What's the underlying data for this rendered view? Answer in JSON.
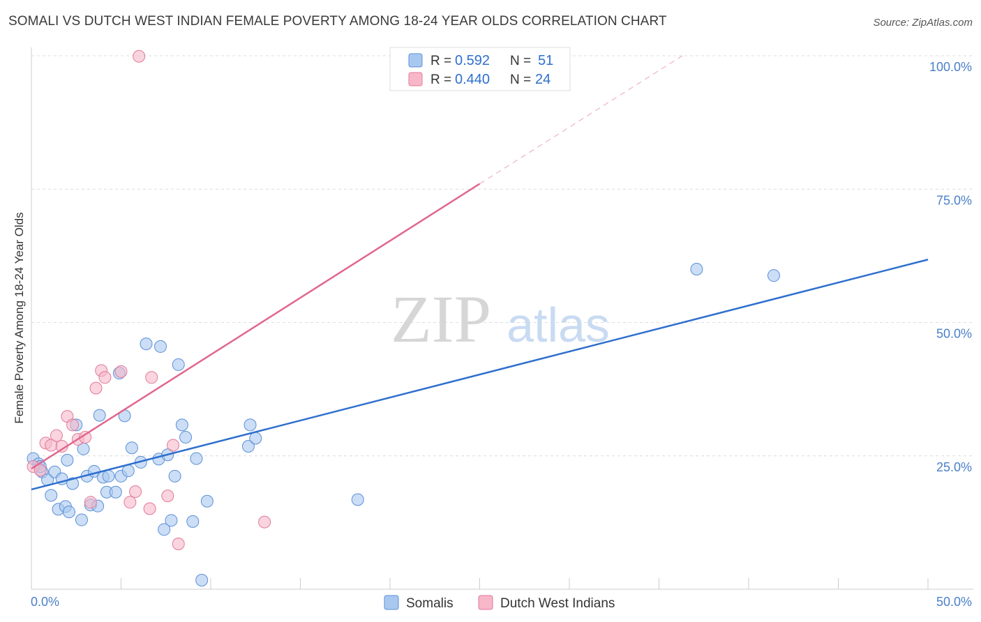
{
  "chart_data": {
    "type": "scatter",
    "title": "SOMALI VS DUTCH WEST INDIAN FEMALE POVERTY AMONG 18-24 YEAR OLDS CORRELATION CHART",
    "source": "Source: ZipAtlas.com",
    "ylabel": "Female Poverty Among 18-24 Year Olds",
    "xlabel": "",
    "xlim": [
      0,
      50
    ],
    "ylim": [
      0,
      100
    ],
    "x_tick_labels": [
      "0.0%",
      "50.0%"
    ],
    "y_tick_labels": [
      "25.0%",
      "50.0%",
      "75.0%",
      "100.0%"
    ],
    "y_ticks": [
      25,
      50,
      75,
      100
    ],
    "watermark": {
      "part1": "ZIP",
      "part2": "atlas"
    },
    "colors": {
      "somali_fill": "#a9c8f0",
      "somali_stroke": "#5b8fd6",
      "somali_line": "#2e6fce",
      "dwi_fill": "#f7b7c9",
      "dwi_stroke": "#e07a9a",
      "dwi_line": "#e0678e",
      "grid": "#dcdcdc",
      "tick": "#4a7fc8"
    },
    "legend": {
      "items": [
        {
          "r_label": "R =",
          "r_value": "0.592",
          "n_label": "N =",
          "n_value": "51"
        },
        {
          "r_label": "R =",
          "r_value": "0.440",
          "n_label": "N =",
          "n_value": "24"
        }
      ]
    },
    "series": [
      {
        "name": "Somalis",
        "r": 0.592,
        "n": 51,
        "trend": {
          "x1": 0,
          "y1": 18.7,
          "x2": 50,
          "y2": 61.8
        },
        "points": [
          [
            0.1,
            24.5
          ],
          [
            0.4,
            23.5
          ],
          [
            0.6,
            22.0
          ],
          [
            0.9,
            20.5
          ],
          [
            1.1,
            17.6
          ],
          [
            1.3,
            22.0
          ],
          [
            1.5,
            15.0
          ],
          [
            1.7,
            20.7
          ],
          [
            1.9,
            15.5
          ],
          [
            2.0,
            24.2
          ],
          [
            2.1,
            14.5
          ],
          [
            2.3,
            19.8
          ],
          [
            2.5,
            30.8
          ],
          [
            2.8,
            13.0
          ],
          [
            2.9,
            26.3
          ],
          [
            3.1,
            21.2
          ],
          [
            3.3,
            15.8
          ],
          [
            3.5,
            22.1
          ],
          [
            3.7,
            15.6
          ],
          [
            3.8,
            32.6
          ],
          [
            4.0,
            21.0
          ],
          [
            4.2,
            18.2
          ],
          [
            4.3,
            21.2
          ],
          [
            4.7,
            18.2
          ],
          [
            4.9,
            40.5
          ],
          [
            5.0,
            21.2
          ],
          [
            5.2,
            32.5
          ],
          [
            5.4,
            22.2
          ],
          [
            5.6,
            26.5
          ],
          [
            6.1,
            23.8
          ],
          [
            6.4,
            46.0
          ],
          [
            7.1,
            24.4
          ],
          [
            7.2,
            45.5
          ],
          [
            7.4,
            11.2
          ],
          [
            7.6,
            25.2
          ],
          [
            7.8,
            12.9
          ],
          [
            8.0,
            21.2
          ],
          [
            8.2,
            42.1
          ],
          [
            8.4,
            30.8
          ],
          [
            8.6,
            28.5
          ],
          [
            9.0,
            12.7
          ],
          [
            9.2,
            24.5
          ],
          [
            9.5,
            1.7
          ],
          [
            9.8,
            16.5
          ],
          [
            12.1,
            26.8
          ],
          [
            12.2,
            30.8
          ],
          [
            12.5,
            28.3
          ],
          [
            18.2,
            16.8
          ],
          [
            37.1,
            60.0
          ],
          [
            41.4,
            58.8
          ],
          [
            0.5,
            23.0
          ]
        ]
      },
      {
        "name": "Dutch West Indians",
        "r": 0.44,
        "n": 24,
        "trend": {
          "x1": 0,
          "y1": 22.6,
          "x2": 25,
          "y2": 76.0
        },
        "trend_dashed": {
          "x1": 25,
          "y1": 76.0,
          "x2": 36.3,
          "y2": 100
        },
        "points": [
          [
            0.1,
            23.0
          ],
          [
            0.5,
            22.3
          ],
          [
            0.8,
            27.4
          ],
          [
            1.1,
            27.0
          ],
          [
            1.4,
            28.8
          ],
          [
            1.7,
            26.8
          ],
          [
            2.0,
            32.4
          ],
          [
            2.3,
            30.8
          ],
          [
            2.6,
            28.1
          ],
          [
            3.0,
            28.5
          ],
          [
            3.3,
            16.3
          ],
          [
            3.6,
            37.7
          ],
          [
            3.9,
            41.0
          ],
          [
            4.1,
            39.7
          ],
          [
            5.0,
            40.8
          ],
          [
            5.5,
            16.3
          ],
          [
            5.8,
            18.3
          ],
          [
            6.0,
            99.9
          ],
          [
            6.6,
            15.1
          ],
          [
            6.7,
            39.7
          ],
          [
            7.6,
            17.5
          ],
          [
            7.9,
            27.0
          ],
          [
            8.2,
            8.5
          ],
          [
            13.0,
            12.6
          ]
        ]
      }
    ],
    "bottom_legend": [
      "Somalis",
      "Dutch West Indians"
    ]
  }
}
